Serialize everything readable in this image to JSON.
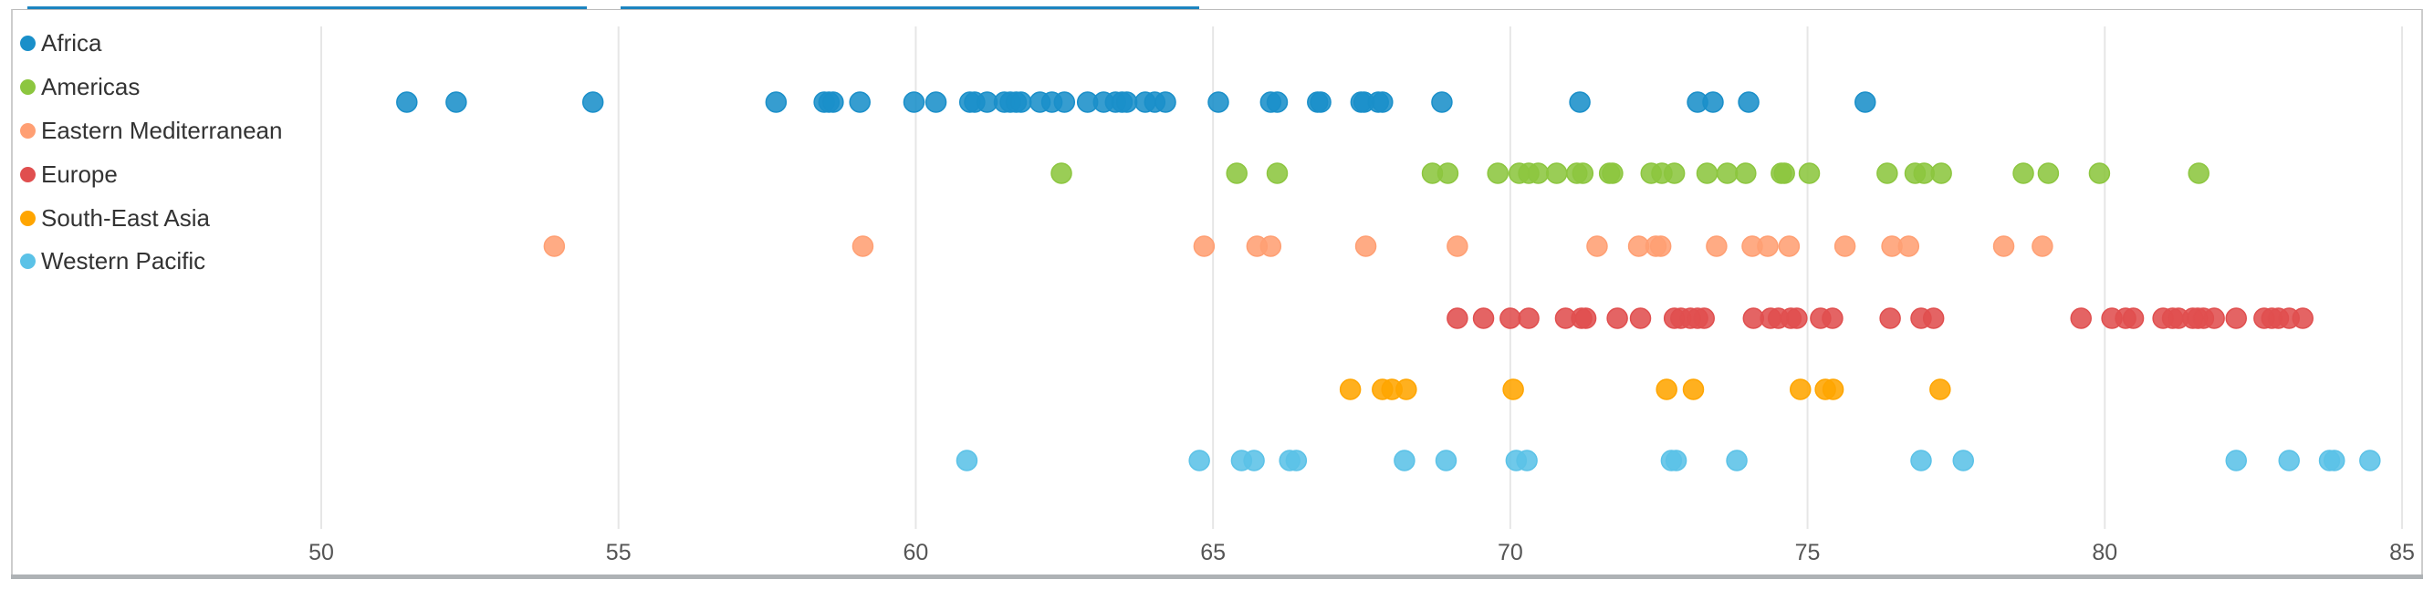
{
  "chart_data": {
    "type": "scatter",
    "title": "",
    "xlabel": "",
    "ylabel": "",
    "xlim": [
      50,
      85
    ],
    "xticks": [
      "50",
      "55",
      "60",
      "65",
      "70",
      "75",
      "80",
      "85"
    ],
    "grid": true,
    "legend_position": "top-left",
    "series": [
      {
        "name": "Africa",
        "color": "#1a8fc9",
        "values": [
          51.44,
          52.27,
          54.57,
          57.65,
          58.46,
          58.54,
          58.61,
          59.06,
          59.97,
          60.34,
          60.91,
          60.99,
          61.2,
          61.49,
          61.59,
          61.69,
          61.77,
          62.09,
          62.29,
          62.5,
          62.89,
          63.16,
          63.36,
          63.47,
          63.55,
          63.86,
          64.02,
          64.2,
          65.09,
          65.97,
          66.08,
          66.76,
          66.81,
          67.49,
          67.54,
          67.78,
          67.85,
          68.85,
          71.17,
          73.15,
          73.41,
          74.01,
          75.97
        ]
      },
      {
        "name": "Americas",
        "color": "#8cc63f",
        "values": [
          62.45,
          65.4,
          66.08,
          68.69,
          68.95,
          69.79,
          70.15,
          70.31,
          70.47,
          70.78,
          71.12,
          71.22,
          71.67,
          71.72,
          72.37,
          72.55,
          72.76,
          73.31,
          73.65,
          73.96,
          74.56,
          74.61,
          75.03,
          76.34,
          76.81,
          76.96,
          77.25,
          78.63,
          79.05,
          79.91,
          81.58
        ]
      },
      {
        "name": "Eastern Mediterranean",
        "color": "#ff9f73",
        "values": [
          53.92,
          59.11,
          64.85,
          65.74,
          65.97,
          67.57,
          69.11,
          71.46,
          72.16,
          72.45,
          72.53,
          73.47,
          74.07,
          74.33,
          74.69,
          75.63,
          76.42,
          76.7,
          78.3,
          78.95
        ]
      },
      {
        "name": "Europe",
        "color": "#e04f4f",
        "values": [
          69.11,
          69.55,
          70.0,
          70.31,
          70.93,
          71.2,
          71.27,
          71.8,
          72.19,
          72.76,
          72.87,
          73.03,
          73.15,
          73.26,
          74.09,
          74.38,
          74.51,
          74.72,
          74.82,
          75.22,
          75.42,
          76.39,
          76.91,
          77.12,
          79.6,
          80.12,
          80.35,
          80.48,
          80.98,
          81.14,
          81.24,
          81.48,
          81.56,
          81.66,
          81.84,
          82.21,
          82.68,
          82.81,
          82.92,
          83.1,
          83.33
        ]
      },
      {
        "name": "South-East Asia",
        "color": "#ffa500",
        "values": [
          67.31,
          67.85,
          68.01,
          68.25,
          70.05,
          72.63,
          73.08,
          74.88,
          75.3,
          75.43,
          77.23
        ]
      },
      {
        "name": "Western Pacific",
        "color": "#5bc2e7",
        "values": [
          60.86,
          64.77,
          65.48,
          65.69,
          66.29,
          66.4,
          68.22,
          68.92,
          70.1,
          70.28,
          72.71,
          72.79,
          73.81,
          76.91,
          77.62,
          82.21,
          83.1,
          83.78,
          83.86,
          84.46
        ]
      }
    ]
  }
}
